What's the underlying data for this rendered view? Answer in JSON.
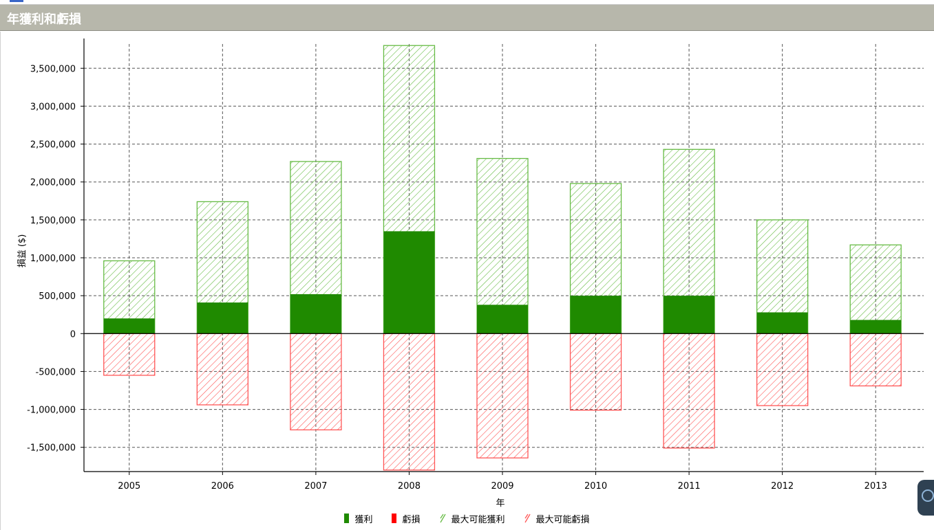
{
  "window": {
    "title": "年獲利和虧損"
  },
  "colors": {
    "profit": "#1f8a00",
    "loss": "#ff0000",
    "max_profit": "#66bb44",
    "max_loss": "#ff5555",
    "grid": "#555555"
  },
  "icons": {
    "corner_widget": "chat-bubble-icon"
  },
  "chart_data": {
    "type": "bar",
    "xlabel": "年",
    "ylabel": "損益 ($)",
    "ylim": [
      -1820000,
      3820000
    ],
    "yticks": [
      -1500000,
      -1000000,
      -500000,
      0,
      500000,
      1000000,
      1500000,
      2000000,
      2500000,
      3000000,
      3500000
    ],
    "ytick_labels": [
      "-1,500,000",
      "-1,000,000",
      "-500,000",
      "0",
      "500,000",
      "1,000,000",
      "1,500,000",
      "2,000,000",
      "2,500,000",
      "3,000,000",
      "3,500,000"
    ],
    "grid": true,
    "legend_position": "bottom",
    "categories": [
      "2005",
      "2006",
      "2007",
      "2008",
      "2009",
      "2010",
      "2011",
      "2012",
      "2013"
    ],
    "series": [
      {
        "name": "獲利",
        "style": "solid",
        "values": [
          200000,
          410000,
          520000,
          1350000,
          380000,
          500000,
          500000,
          280000,
          180000
        ]
      },
      {
        "name": "虧損",
        "style": "solid",
        "values": [
          0,
          0,
          0,
          0,
          0,
          0,
          0,
          0,
          0
        ]
      },
      {
        "name": "最大可能獲利",
        "style": "hatch",
        "values": [
          960000,
          1740000,
          2270000,
          3800000,
          2310000,
          1980000,
          2430000,
          1500000,
          1170000
        ]
      },
      {
        "name": "最大可能虧損",
        "style": "hatch",
        "values": [
          -550000,
          -940000,
          -1270000,
          -1800000,
          -1640000,
          -1010000,
          -1510000,
          -950000,
          -690000
        ]
      }
    ]
  }
}
